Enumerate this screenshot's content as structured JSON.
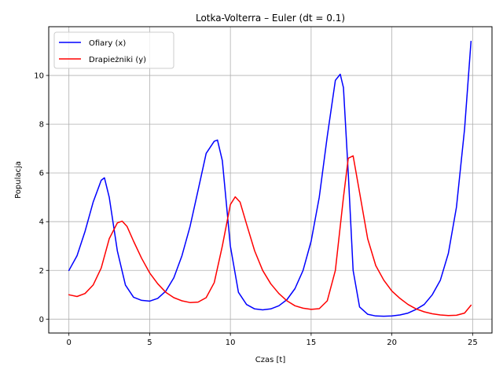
{
  "chart_data": {
    "type": "line",
    "title": "Lotka-Volterra – Euler (dt = 0.1)",
    "xlabel": "Czas [t]",
    "ylabel": "Populacja",
    "xlim": [
      -1.25,
      26.2
    ],
    "ylim": [
      -0.57,
      12.0
    ],
    "xticks": [
      0,
      5,
      10,
      15,
      20,
      25
    ],
    "yticks": [
      0,
      2,
      4,
      6,
      8,
      10
    ],
    "grid": true,
    "legend": "top-left",
    "series": [
      {
        "name": "Ofiary (x)",
        "color": "#0000ff",
        "x": [
          0,
          0.5,
          1.0,
          1.5,
          2.0,
          2.2,
          2.5,
          3.0,
          3.5,
          4.0,
          4.5,
          5.0,
          5.5,
          6.0,
          6.5,
          7.0,
          7.5,
          8.0,
          8.5,
          9.0,
          9.2,
          9.5,
          10.0,
          10.5,
          11.0,
          11.5,
          12.0,
          12.5,
          13.0,
          13.5,
          14.0,
          14.5,
          15.0,
          15.5,
          16.0,
          16.5,
          16.8,
          17.0,
          17.3,
          17.6,
          18.0,
          18.5,
          19.0,
          19.5,
          20.0,
          20.5,
          21.0,
          21.5,
          22.0,
          22.5,
          23.0,
          23.5,
          24.0,
          24.5,
          24.9
        ],
        "values": [
          2.0,
          2.6,
          3.6,
          4.8,
          5.7,
          5.8,
          5.0,
          2.8,
          1.4,
          0.9,
          0.77,
          0.74,
          0.85,
          1.15,
          1.7,
          2.6,
          3.8,
          5.3,
          6.8,
          7.3,
          7.35,
          6.5,
          3.0,
          1.1,
          0.6,
          0.42,
          0.38,
          0.42,
          0.55,
          0.8,
          1.25,
          2.0,
          3.2,
          5.0,
          7.5,
          9.8,
          10.05,
          9.5,
          6.0,
          2.0,
          0.5,
          0.2,
          0.13,
          0.12,
          0.13,
          0.17,
          0.25,
          0.4,
          0.6,
          1.0,
          1.6,
          2.7,
          4.6,
          7.8,
          11.4
        ]
      },
      {
        "name": "Drapieżniki (y)",
        "color": "#ff0000",
        "x": [
          0,
          0.5,
          1.0,
          1.5,
          2.0,
          2.5,
          3.0,
          3.3,
          3.6,
          4.0,
          4.5,
          5.0,
          5.5,
          6.0,
          6.5,
          7.0,
          7.5,
          8.0,
          8.5,
          9.0,
          9.5,
          10.0,
          10.3,
          10.6,
          11.0,
          11.5,
          12.0,
          12.5,
          13.0,
          13.5,
          14.0,
          14.5,
          15.0,
          15.5,
          16.0,
          16.5,
          17.0,
          17.3,
          17.6,
          18.0,
          18.5,
          19.0,
          19.5,
          20.0,
          20.5,
          21.0,
          21.5,
          22.0,
          22.5,
          23.0,
          23.5,
          24.0,
          24.5,
          24.9
        ],
        "values": [
          1.0,
          0.93,
          1.05,
          1.4,
          2.1,
          3.3,
          3.95,
          4.02,
          3.8,
          3.2,
          2.5,
          1.9,
          1.45,
          1.1,
          0.88,
          0.75,
          0.68,
          0.7,
          0.88,
          1.5,
          3.0,
          4.7,
          5.02,
          4.8,
          3.9,
          2.8,
          2.0,
          1.45,
          1.05,
          0.75,
          0.55,
          0.45,
          0.4,
          0.43,
          0.75,
          2.0,
          5.0,
          6.6,
          6.7,
          5.2,
          3.3,
          2.2,
          1.6,
          1.15,
          0.85,
          0.6,
          0.42,
          0.3,
          0.22,
          0.17,
          0.15,
          0.16,
          0.25,
          0.57
        ]
      }
    ]
  }
}
